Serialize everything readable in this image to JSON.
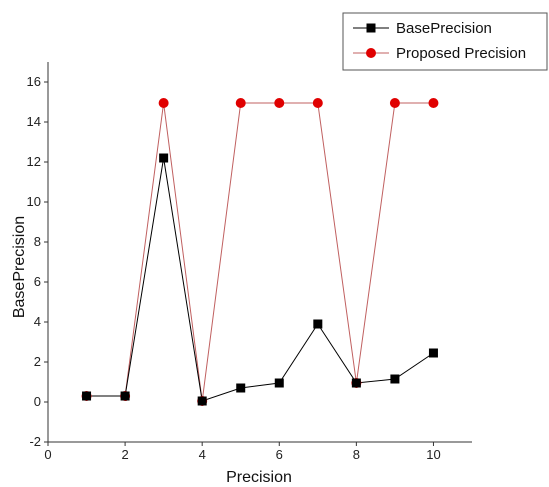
{
  "chart_data": {
    "type": "line",
    "xlabel": "Precision",
    "ylabel": "BasePrecision",
    "xlim": [
      0,
      11
    ],
    "ylim": [
      -2,
      17
    ],
    "xticks": [
      0,
      2,
      4,
      6,
      8,
      10
    ],
    "yticks": [
      -2,
      0,
      2,
      4,
      6,
      8,
      10,
      12,
      14,
      16
    ],
    "grid": false,
    "legend_position": "top-right",
    "series": [
      {
        "name": "BasePrecision",
        "color": "#000000",
        "marker": "square",
        "x": [
          1,
          2,
          3,
          4,
          5,
          6,
          7,
          8,
          9,
          10
        ],
        "y": [
          0.3,
          0.3,
          12.2,
          0.05,
          0.7,
          0.95,
          3.9,
          0.95,
          1.15,
          2.45
        ]
      },
      {
        "name": "Proposed Precision",
        "color": "#e00000",
        "line_color": "#c06060",
        "marker": "circle",
        "x": [
          1,
          2,
          3,
          4,
          5,
          6,
          7,
          8,
          9,
          10
        ],
        "y": [
          0.3,
          0.3,
          14.95,
          0.05,
          14.95,
          14.95,
          14.95,
          0.95,
          14.95,
          14.95
        ]
      }
    ]
  }
}
